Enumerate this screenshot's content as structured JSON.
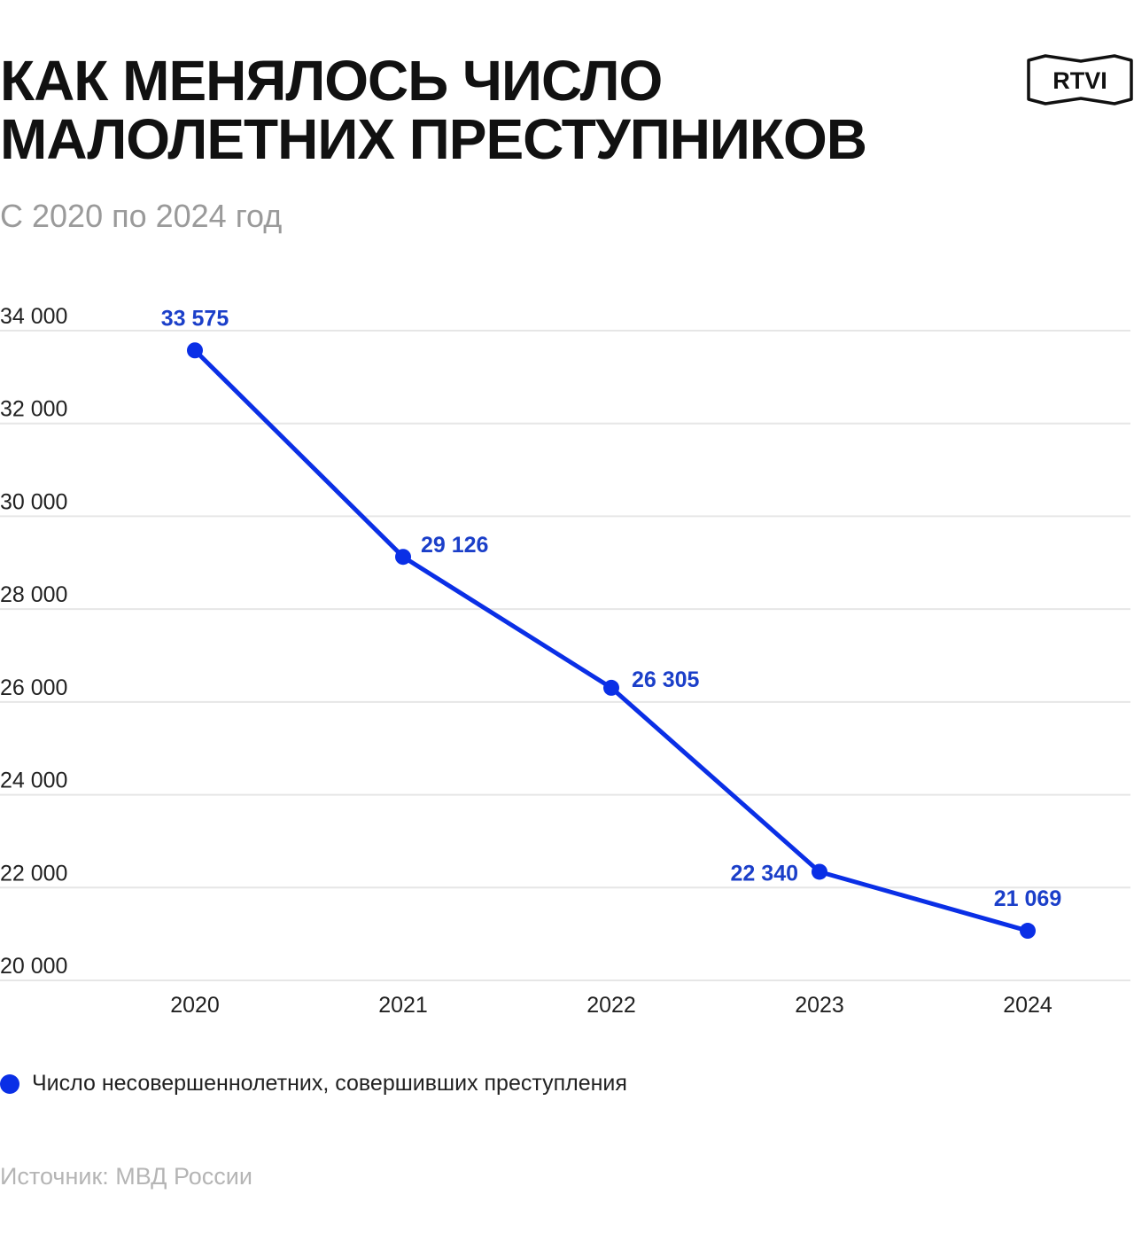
{
  "header": {
    "title_line1": "КАК МЕНЯЛОСЬ ЧИСЛО",
    "title_line2": "МАЛОЛЕТНИХ ПРЕСТУПНИКОВ",
    "subtitle": "С 2020 по 2024 год",
    "logo_text": "RTVI"
  },
  "chart_data": {
    "type": "line",
    "x": [
      "2020",
      "2021",
      "2022",
      "2023",
      "2024"
    ],
    "series": [
      {
        "name": "Число несовершеннолетних, совершивших преступления",
        "values": [
          33575,
          29126,
          26305,
          22340,
          21069
        ],
        "labels": [
          "33 575",
          "29 126",
          "26 305",
          "22 340",
          "21 069"
        ]
      }
    ],
    "yticks": [
      20000,
      22000,
      24000,
      26000,
      28000,
      30000,
      32000,
      34000
    ],
    "ytick_labels": [
      "20 000",
      "22 000",
      "24 000",
      "26 000",
      "28 000",
      "30 000",
      "32 000",
      "34 000"
    ],
    "ylim": [
      20000,
      34000
    ],
    "grid": true,
    "legend_position": "bottom-left"
  },
  "colors": {
    "series": "#0a2fe6",
    "label": "#1b3fc9",
    "grid": "#e6e6e6"
  },
  "legend": {
    "label": "Число несовершеннолетних, совершивших преступления"
  },
  "footer": {
    "source": "Источник: МВД России"
  }
}
